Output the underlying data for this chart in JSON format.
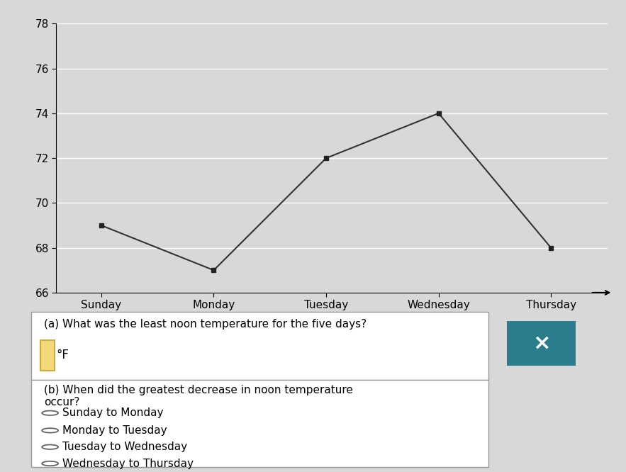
{
  "x_labels": [
    "Sunday",
    "Monday",
    "Tuesday",
    "Wednesday",
    "Thursday"
  ],
  "temperatures": [
    69,
    67,
    72,
    74,
    68
  ],
  "ylim": [
    66,
    78
  ],
  "yticks": [
    66,
    68,
    70,
    72,
    74,
    76,
    78
  ],
  "line_color": "#333333",
  "marker_color": "#222222",
  "bg_color": "#d8d8d8",
  "chart_bg": "#d8d8d8",
  "panel_bg": "#d0d0d0",
  "white": "#ffffff",
  "teal_color": "#2a7d8c",
  "question_a": "(a) What was the least noon temperature for the five days?",
  "question_b": "(b) When did the greatest decrease in noon temperature\noccur?",
  "choices": [
    "Sunday to Monday",
    "Monday to Tuesday",
    "Tuesday to Wednesday",
    "Wednesday to Thursday"
  ],
  "unit": "°F",
  "grid_color": "#ffffff",
  "separator_color": "#888888"
}
